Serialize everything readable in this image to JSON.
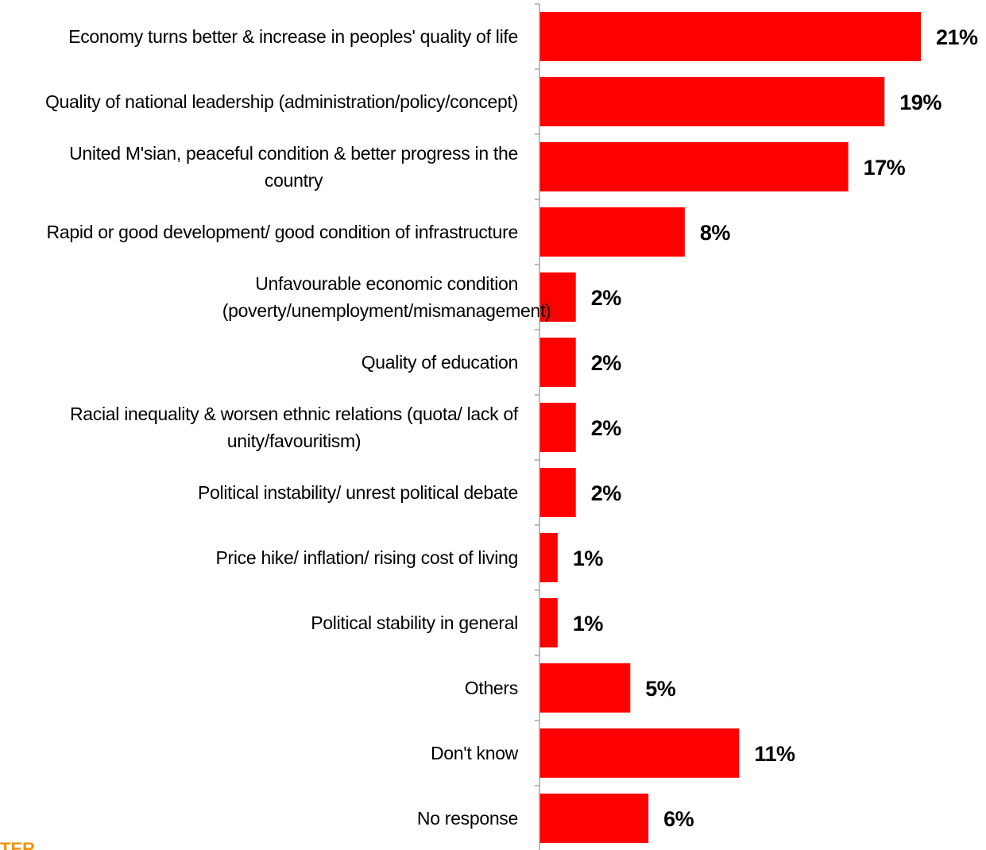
{
  "chart_data": {
    "type": "bar",
    "orientation": "horizontal",
    "categories": [
      [
        "Economy turns better & increase in peoples' quality of life"
      ],
      [
        "Quality of national leadership (administration/policy/concept)"
      ],
      [
        "United M'sian, peaceful condition & better progress in the",
        "country"
      ],
      [
        "Rapid or good development/ good condition of infrastructure"
      ],
      [
        "Unfavourable economic condition",
        "(poverty/unemployment/mismanagement)"
      ],
      [
        "Quality of education"
      ],
      [
        "Racial inequality & worsen ethnic relations (quota/ lack of",
        "unity/favouritism)"
      ],
      [
        "Political instability/ unrest political debate"
      ],
      [
        "Price hike/ inflation/ rising cost of living"
      ],
      [
        "Political stability in general"
      ],
      [
        "Others"
      ],
      [
        "Don't know"
      ],
      [
        "No response"
      ]
    ],
    "values": [
      21,
      19,
      17,
      8,
      2,
      2,
      2,
      2,
      1,
      1,
      5,
      11,
      6
    ],
    "value_labels": [
      "21%",
      "19%",
      "17%",
      "8%",
      "2%",
      "2%",
      "2%",
      "2%",
      "1%",
      "1%",
      "5%",
      "11%",
      "6%"
    ],
    "unit": "%",
    "bar_color": "#ff0000",
    "xlim": [
      0,
      21
    ],
    "grid": false,
    "legend": "none"
  },
  "logo_fragment": "TER"
}
